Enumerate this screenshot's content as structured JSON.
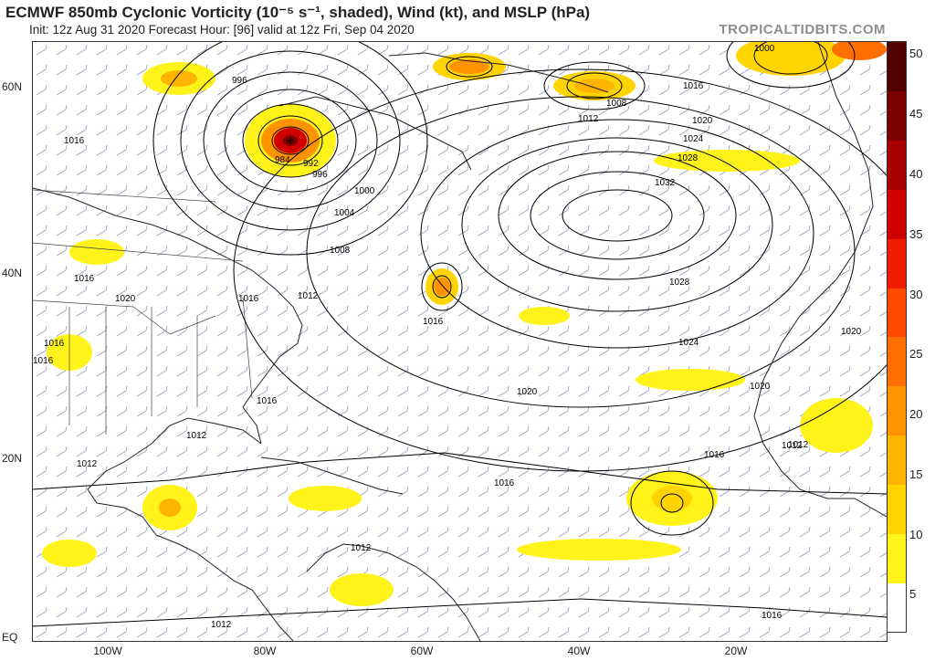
{
  "header": {
    "title": "ECMWF 850mb Cyclonic Vorticity (10⁻⁵ s⁻¹, shaded), Wind (kt), and MSLP (hPa)",
    "subtitle": "Init: 12z Aug 31 2020   Forecast Hour: [96]   valid at 12z Fri, Sep 04 2020",
    "brand": "TROPICALTIDBITS.COM"
  },
  "axes": {
    "lat_labels": [
      "60N",
      "40N",
      "20N",
      "EQ"
    ],
    "lon_labels": [
      "100W",
      "80W",
      "60W",
      "40W",
      "20W"
    ]
  },
  "colorbar": {
    "labels": [
      "50",
      "45",
      "40",
      "35",
      "30",
      "25",
      "20",
      "15",
      "10",
      "5"
    ],
    "colors": [
      "#ffffff",
      "#fff31a",
      "#ffd400",
      "#ffb400",
      "#ff9300",
      "#ff6f00",
      "#ff4a00",
      "#f01c00",
      "#d10000",
      "#a60000",
      "#7d0000",
      "#520000"
    ]
  },
  "isobar_labels": [
    "996",
    "1016",
    "984",
    "992",
    "996",
    "1000",
    "1004",
    "1008",
    "1012",
    "1016",
    "1020",
    "1016",
    "1016",
    "1016",
    "1016",
    "1012",
    "1012",
    "1012",
    "1016",
    "1020",
    "1016",
    "1012",
    "1012",
    "1008",
    "1012",
    "1016",
    "1020",
    "1024",
    "1028",
    "1032",
    "1028",
    "1024",
    "1020",
    "1020",
    "1016",
    "1012",
    "1016",
    "1000"
  ]
}
